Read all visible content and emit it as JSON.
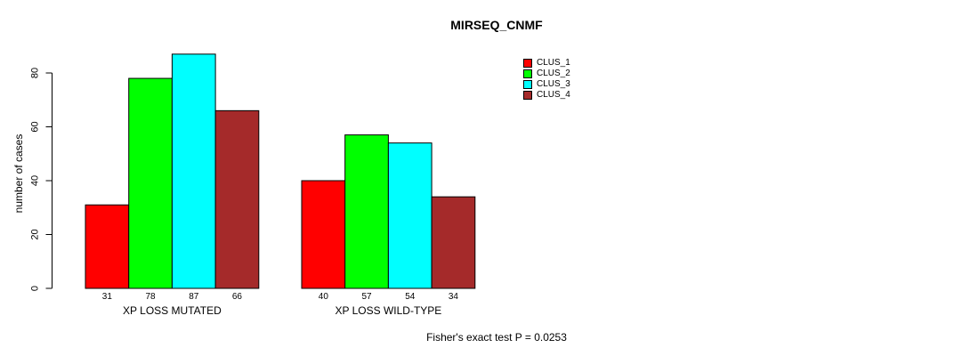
{
  "chart_data": {
    "type": "bar",
    "title": "MIRSEQ_CNMF",
    "categories": [
      "XP LOSS MUTATED",
      "XP LOSS WILD-TYPE"
    ],
    "series": [
      {
        "name": "CLUS_1",
        "color": "#ff0000",
        "values": [
          31,
          40
        ]
      },
      {
        "name": "CLUS_2",
        "color": "#00ff00",
        "values": [
          78,
          57
        ]
      },
      {
        "name": "CLUS_3",
        "color": "#00ffff",
        "values": [
          87,
          54
        ]
      },
      {
        "name": "CLUS_4",
        "color": "#a52a2a",
        "values": [
          66,
          34
        ]
      }
    ],
    "xlabel": "",
    "ylabel": "number of cases",
    "yticks": [
      0,
      20,
      40,
      60,
      80
    ],
    "ylim": [
      0,
      87
    ],
    "bar_value_labels_shown": true,
    "grid": false,
    "legend_position": "inside-top-right",
    "annotation": "Fisher's exact test P = 0.0253",
    "background_color": "#ffffff",
    "bar_border_color": "#000000",
    "text_color": "#000000"
  }
}
